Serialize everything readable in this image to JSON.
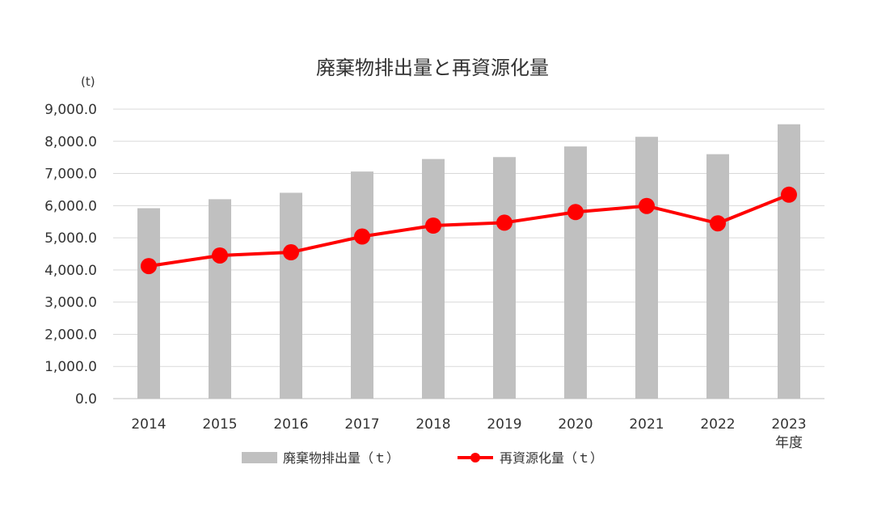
{
  "chart_data": {
    "type": "bar",
    "title": "廃棄物排出量と再資源化量",
    "y_unit_label": "(t)",
    "x_unit_label": "年度",
    "categories": [
      "2014",
      "2015",
      "2016",
      "2017",
      "2018",
      "2019",
      "2020",
      "2021",
      "2022",
      "2023"
    ],
    "ylim": [
      0,
      9000
    ],
    "yticks": [
      0,
      1000,
      2000,
      3000,
      4000,
      5000,
      6000,
      7000,
      8000,
      9000
    ],
    "ytick_labels": [
      "0.0",
      "1,000.0",
      "2,000.0",
      "3,000.0",
      "4,000.0",
      "5,000.0",
      "6,000.0",
      "7,000.0",
      "8,000.0",
      "9,000.0"
    ],
    "grid": true,
    "legend_position": "bottom",
    "series": [
      {
        "name": "廃棄物排出量（ｔ）",
        "kind": "bar",
        "color": "#c0c0c0",
        "values": [
          5920,
          6200,
          6400,
          7060,
          7450,
          7510,
          7840,
          8140,
          7600,
          8530
        ]
      },
      {
        "name": "再資源化量（ｔ）",
        "kind": "line",
        "color": "#ff0000",
        "values": [
          4120,
          4450,
          4550,
          5040,
          5380,
          5470,
          5800,
          5990,
          5450,
          6340
        ]
      }
    ]
  }
}
